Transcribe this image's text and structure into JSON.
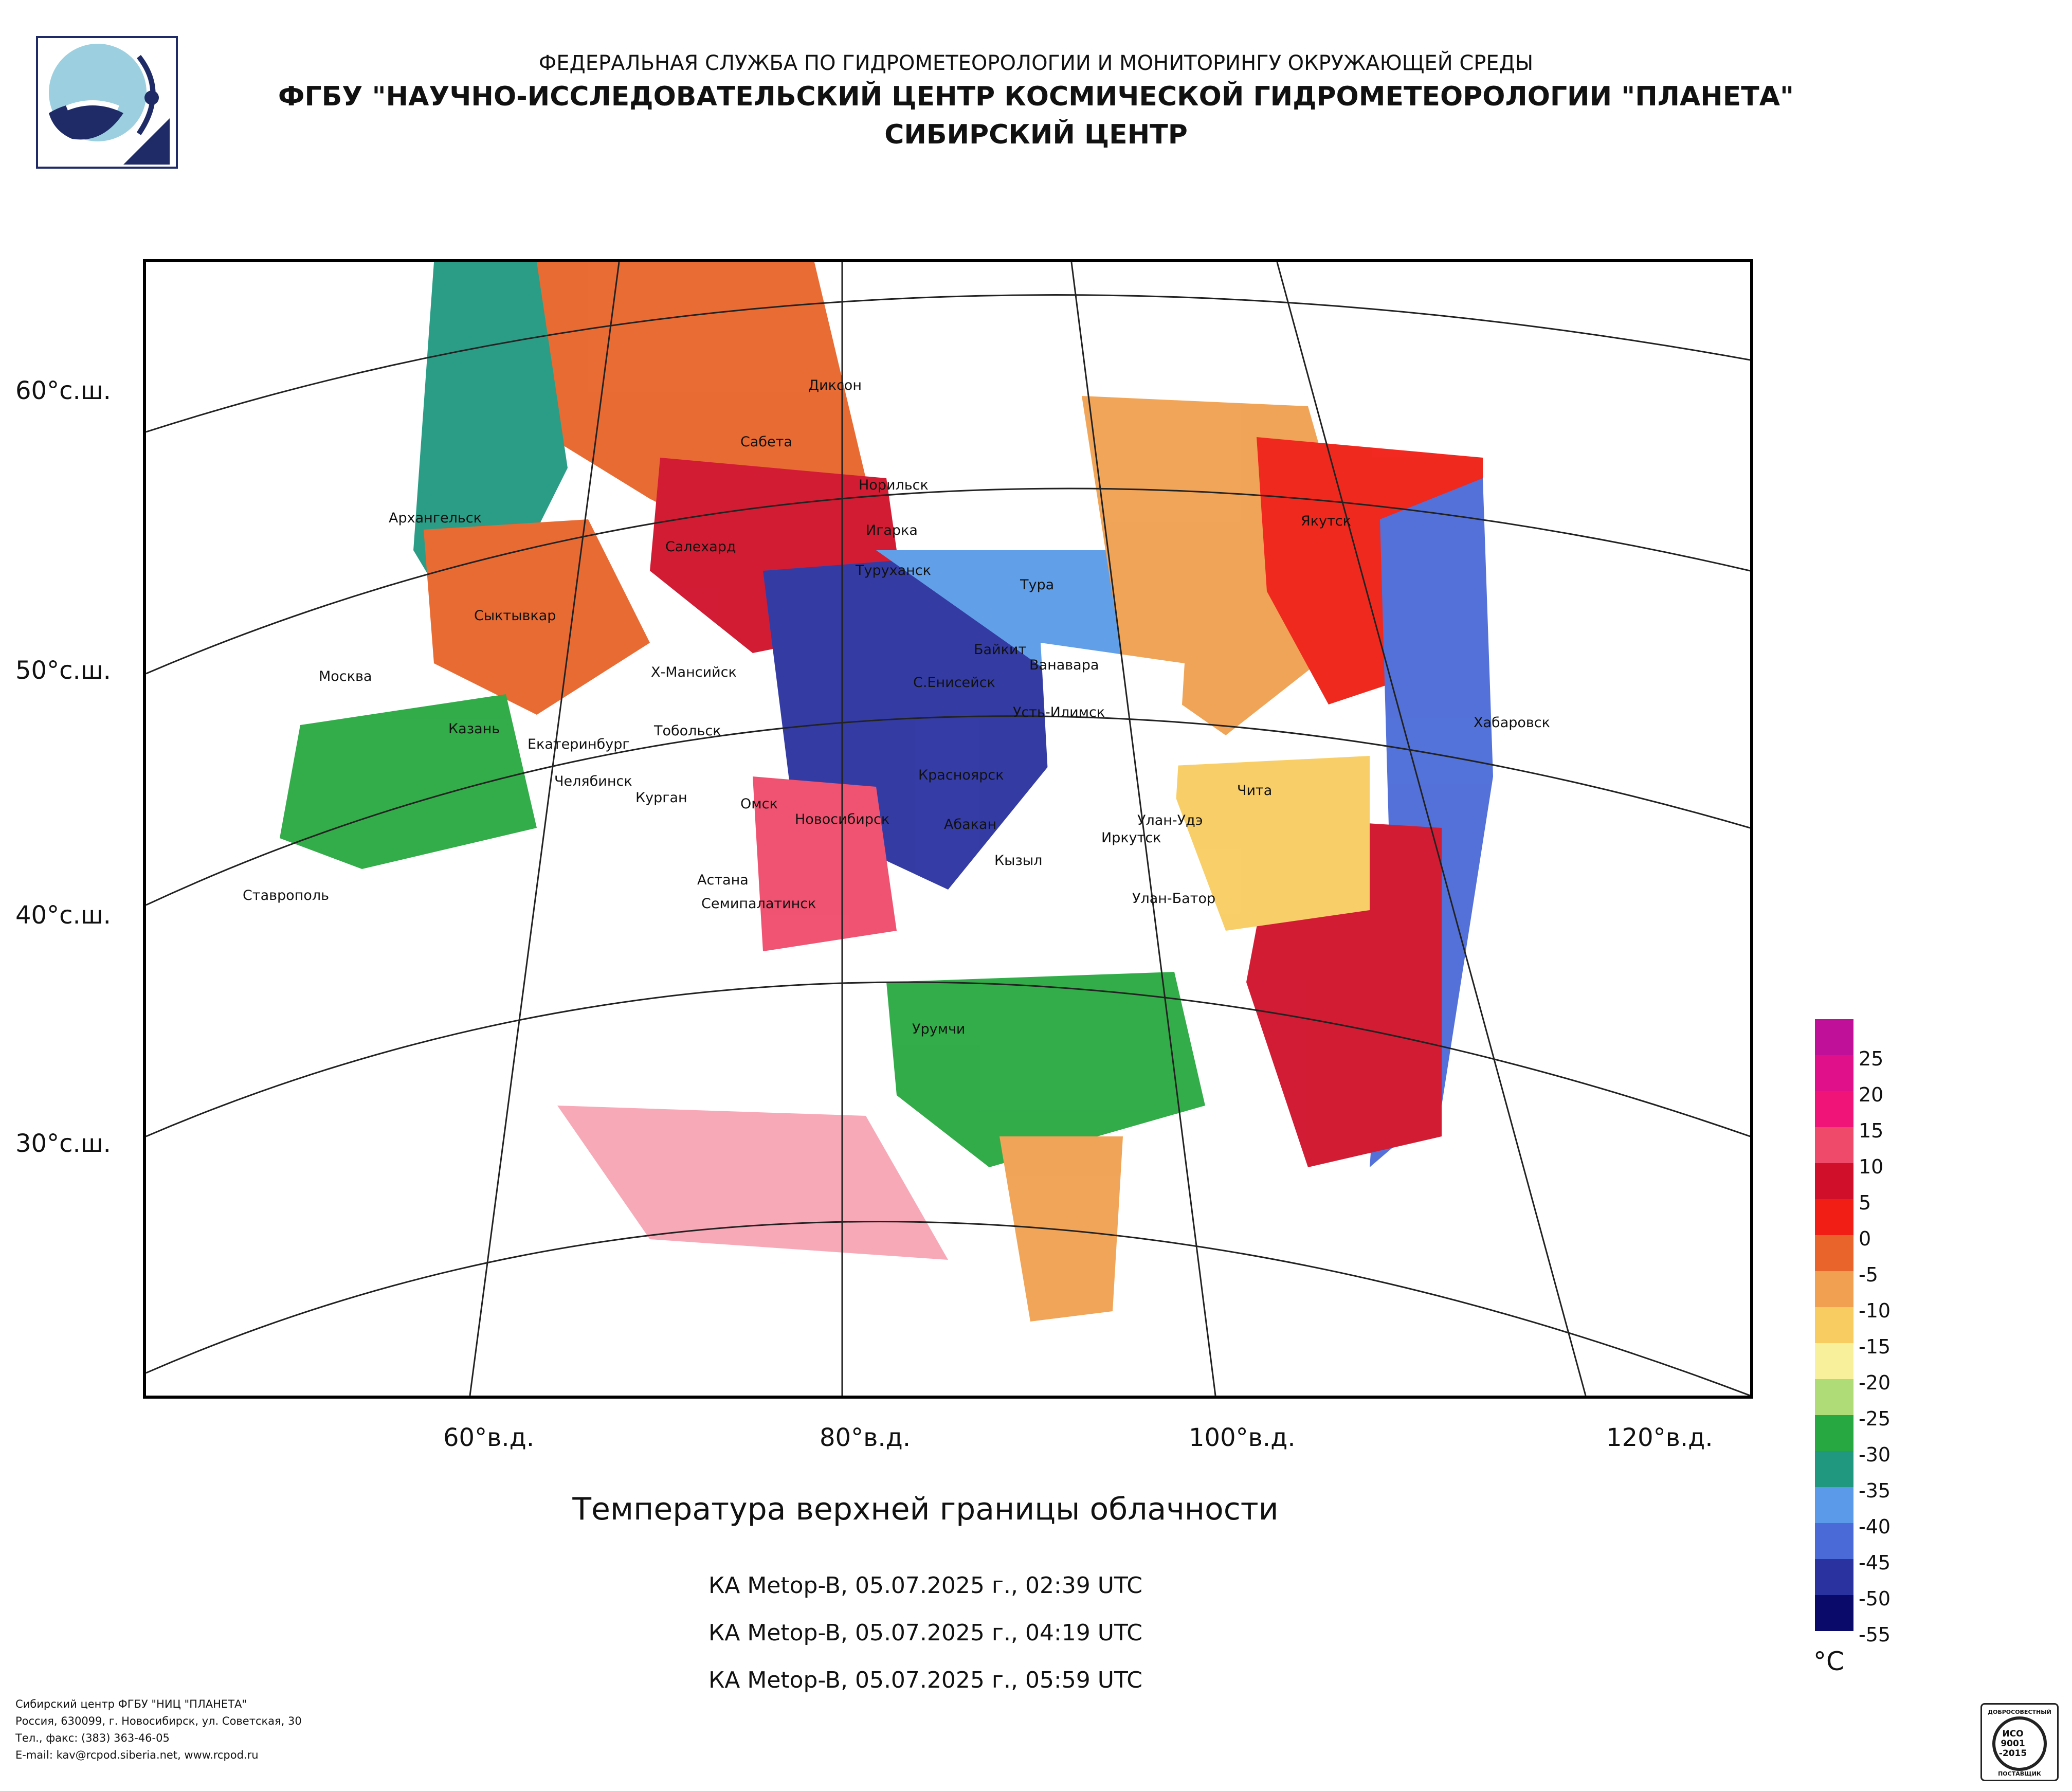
{
  "header": {
    "line1": "ФЕДЕРАЛЬНАЯ СЛУЖБА ПО ГИДРОМЕТЕОРОЛОГИИ И МОНИТОРИНГУ ОКРУЖАЮЩЕЙ СРЕДЫ",
    "line2": "ФГБУ \"НАУЧНО-ИССЛЕДОВАТЕЛЬСКИЙ ЦЕНТР КОСМИЧЕСКОЙ ГИДРОМЕТЕОРОЛОГИИ \"ПЛАНЕТА\"",
    "line3": "СИБИРСКИЙ ЦЕНТР"
  },
  "map": {
    "lat_labels": [
      "60°с.ш.",
      "50°с.ш.",
      "40°с.ш.",
      "30°с.ш."
    ],
    "lon_labels": [
      "60°в.д.",
      "80°в.д.",
      "100°в.д.",
      "120°в.д."
    ],
    "cities": [
      "Диксон",
      "Сабета",
      "Норильск",
      "Игарка",
      "Туруханск",
      "Салехард",
      "Архангельск",
      "Сыктывкар",
      "Тура",
      "Якутск",
      "Байкит",
      "Ванавара",
      "С.Енисейск",
      "Усть-Илимск",
      "Х-Мансийск",
      "Москва",
      "Казань",
      "Екатеринбург",
      "Тобольск",
      "Челябинск",
      "Курган",
      "Омск",
      "Новосибирск",
      "Красноярск",
      "Абакан",
      "Кызыл",
      "Улан-Удэ",
      "Иркутск",
      "Чита",
      "Хабаровск",
      "Ставрополь",
      "Астана",
      "Семипалатинск",
      "Улан-Батор",
      "Урумчи"
    ]
  },
  "title": "Температура верхней границы облачности",
  "passes": [
    "КА Metop-B, 05.07.2025 г., 02:39 UTC",
    "КА Metop-B, 05.07.2025 г., 04:19 UTC",
    "КА Metop-B, 05.07.2025 г., 05:59 UTC"
  ],
  "legend": {
    "unit": "°C",
    "labels": [
      "25",
      "20",
      "15",
      "10",
      "5",
      "0",
      "-5",
      "-10",
      "-15",
      "-20",
      "-25",
      "-30",
      "-35",
      "-40",
      "-45",
      "-50",
      "-55"
    ],
    "colors": [
      "#c0109a",
      "#e0108a",
      "#f01478",
      "#f04a6a",
      "#d0102a",
      "#f01e14",
      "#e8642a",
      "#f0a050",
      "#f8cc60",
      "#f8f09a",
      "#b0dc78",
      "#28a840",
      "#209880",
      "#5a9ae8",
      "#4a6ad8",
      "#2a32a0",
      "#0a0a6a"
    ]
  },
  "footer": {
    "line1": "Сибирский центр ФГБУ \"НИЦ \"ПЛАНЕТА\"",
    "line2": "Россия, 630099, г. Новосибирск, ул. Советская, 30",
    "line3": "Тел., факс: (383) 363-46-05",
    "line4": "E-mail: kav@rcpod.siberia.net, www.rcpod.ru"
  },
  "cert": {
    "top": "ДОБРОСОВЕСТНЫЙ",
    "std1": "ИСО",
    "std2": "9001",
    "std3": "-2015",
    "bottom": "ПОСТАВЩИК"
  }
}
